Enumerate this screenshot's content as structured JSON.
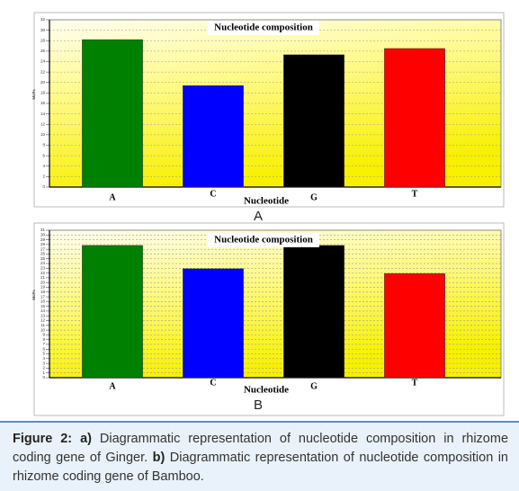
{
  "chart_data": [
    {
      "type": "bar",
      "title": "Nucleotide composition",
      "panel": "A",
      "x_label": "Nucleotide",
      "y_label": "Mol%",
      "categories": [
        "A",
        "C",
        "G",
        "T"
      ],
      "values": [
        28.2,
        19.4,
        25.3,
        26.5
      ],
      "colors": [
        "#008000",
        "#0000ff",
        "#000000",
        "#ff0000"
      ],
      "ylim": [
        0,
        32
      ],
      "yticks": [
        0,
        2,
        4,
        6,
        8,
        10,
        12,
        14,
        16,
        18,
        20,
        22,
        24,
        26,
        28,
        30,
        32
      ],
      "grid": true
    },
    {
      "type": "bar",
      "title": "Nucleotide composition",
      "panel": "B",
      "x_label": "Nucleotide",
      "y_label": "Mol%",
      "categories": [
        "A",
        "C",
        "G",
        "T"
      ],
      "values": [
        27.8,
        22.9,
        27.8,
        21.9
      ],
      "colors": [
        "#008000",
        "#0000ff",
        "#000000",
        "#ff0000"
      ],
      "ylim": [
        0,
        31
      ],
      "yticks": [
        0,
        1,
        2,
        3,
        4,
        5,
        6,
        7,
        8,
        9,
        10,
        11,
        12,
        13,
        14,
        15,
        16,
        17,
        18,
        19,
        20,
        21,
        22,
        23,
        24,
        25,
        26,
        27,
        28,
        29,
        30,
        31
      ],
      "grid": true
    }
  ],
  "caption": [
    "Figure 2:",
    "a)",
    "Diagrammatic representation of nucleotide composition in rhizome coding gene of Ginger.",
    "b)",
    "Diagrammatic representation of nucleotide composition in rhizome coding gene of Bamboo."
  ]
}
